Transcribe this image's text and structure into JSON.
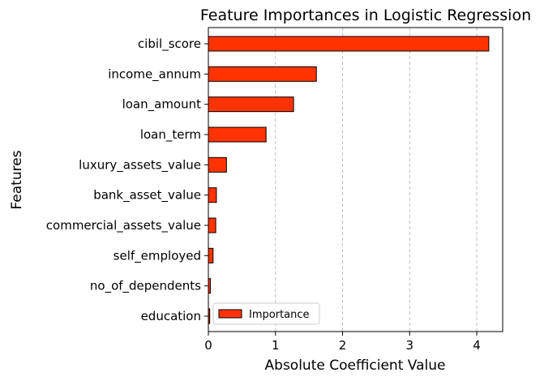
{
  "chart_data": {
    "type": "bar",
    "orientation": "horizontal",
    "title": "Feature Importances in Logistic Regression",
    "xlabel": "Absolute Coefficient Value",
    "ylabel": "Features",
    "categories": [
      "cibil_score",
      "income_annum",
      "loan_amount",
      "loan_term",
      "luxury_assets_value",
      "bank_asset_value",
      "commercial_assets_value",
      "self_employed",
      "no_of_dependents",
      "education"
    ],
    "series": [
      {
        "name": "Importance",
        "color": "#ff3300",
        "values": [
          4.18,
          1.61,
          1.27,
          0.86,
          0.27,
          0.12,
          0.11,
          0.07,
          0.03,
          0.02
        ]
      }
    ],
    "xlim": [
      0,
      4.4
    ],
    "xticks": [
      0,
      1,
      2,
      3,
      4
    ],
    "grid": "x-dashed",
    "legend_position": "lower-left"
  }
}
